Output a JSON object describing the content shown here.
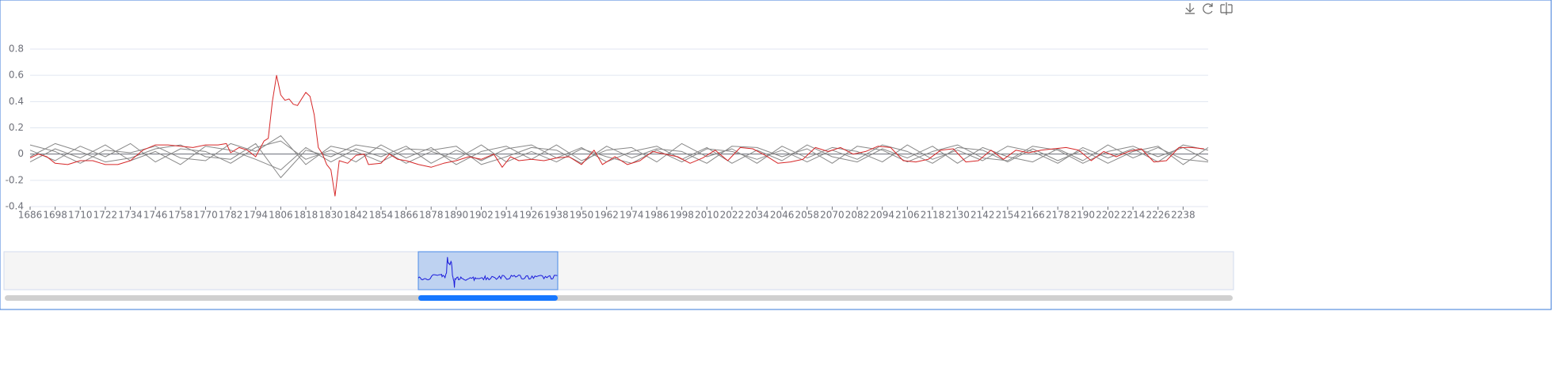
{
  "chart_data": {
    "type": "line",
    "x": [
      1686,
      1698,
      1710,
      1722,
      1734,
      1746,
      1758,
      1770,
      1782,
      1794,
      1806,
      1818,
      1830,
      1842,
      1854,
      1866,
      1878,
      1890,
      1902,
      1914,
      1926,
      1938,
      1950,
      1962,
      1974,
      1986,
      1998,
      2010,
      2022,
      2034,
      2046,
      2058,
      2070,
      2082,
      2094,
      2106,
      2118,
      2130,
      2142,
      2154,
      2166,
      2178,
      2190,
      2202,
      2214,
      2226,
      2238,
      2250
    ],
    "xlim": [
      1686,
      2250
    ],
    "xticks": [
      1686,
      1698,
      1710,
      1722,
      1734,
      1746,
      1758,
      1770,
      1782,
      1794,
      1806,
      1818,
      1830,
      1842,
      1854,
      1866,
      1878,
      1890,
      1902,
      1914,
      1926,
      1938,
      1950,
      1962,
      1974,
      1986,
      1998,
      2010,
      2022,
      2034,
      2046,
      2058,
      2070,
      2082,
      2094,
      2106,
      2118,
      2130,
      2142,
      2154,
      2166,
      2178,
      2190,
      2202,
      2214,
      2226,
      2238
    ],
    "ylim": [
      -0.4,
      0.8
    ],
    "yticks": [
      0.8,
      0.6,
      0.4,
      0.2,
      0,
      -0.2,
      -0.4
    ],
    "grid": true,
    "series": [
      {
        "color": "#888888",
        "values": [
          0.03,
          -0.05,
          0.06,
          -0.02,
          0.08,
          -0.06,
          0.04,
          0.02,
          -0.07,
          0.05,
          0.1,
          -0.04,
          0.03,
          -0.06,
          0.07,
          -0.03,
          0.05,
          -0.08,
          0.02,
          0.06,
          -0.04,
          0.07,
          -0.05,
          0.03,
          0.05,
          -0.06,
          0.08,
          -0.02,
          0.04,
          -0.07,
          0.06,
          -0.03,
          0.05,
          0.02,
          -0.06,
          0.07,
          -0.04,
          0.03,
          -0.05,
          0.06,
          0.02,
          -0.07,
          0.05,
          -0.03,
          0.04,
          -0.06,
          0.07,
          0.03
        ]
      },
      {
        "color": "#888888",
        "values": [
          -0.06,
          0.04,
          -0.03,
          0.07,
          -0.05,
          0.02,
          -0.08,
          0.06,
          0.03,
          -0.04,
          -0.12,
          0.05,
          -0.06,
          0.04,
          -0.02,
          0.06,
          -0.07,
          0.03,
          -0.05,
          0.04,
          0.07,
          -0.03,
          0.05,
          -0.06,
          0.02,
          0.06,
          -0.04,
          0.05,
          -0.07,
          0.03,
          -0.05,
          0.07,
          -0.02,
          -0.06,
          0.04,
          -0.03,
          0.06,
          -0.07,
          0.05,
          -0.02,
          -0.06,
          0.04,
          -0.05,
          0.07,
          -0.03,
          0.05,
          -0.04,
          -0.06
        ]
      },
      {
        "color": "#888888",
        "values": [
          0.07,
          0.02,
          -0.07,
          0.03,
          0.01,
          0.06,
          -0.03,
          -0.05,
          0.08,
          0.02,
          0.14,
          -0.08,
          0.06,
          0.02,
          -0.06,
          0.04,
          0.03,
          0.06,
          -0.08,
          -0.02,
          0.05,
          0.03,
          -0.07,
          0.06,
          -0.03,
          0.04,
          0.02,
          -0.07,
          0.06,
          0.05,
          -0.02,
          0.04,
          -0.07,
          0.06,
          0.03,
          -0.06,
          0.02,
          0.07,
          -0.03,
          -0.05,
          0.06,
          0.03,
          -0.07,
          0.02,
          0.06,
          -0.02,
          0.05,
          -0.05
        ]
      },
      {
        "color": "#888888",
        "values": [
          -0.02,
          0.08,
          0.02,
          -0.06,
          -0.03,
          0.04,
          0.07,
          -0.02,
          -0.04,
          0.08,
          -0.18,
          0.03,
          -0.02,
          0.07,
          0.04,
          -0.07,
          0.02,
          -0.04,
          0.07,
          -0.06,
          0.02,
          -0.06,
          0.04,
          -0.02,
          -0.07,
          0.03,
          -0.06,
          0.04,
          0.02,
          -0.04,
          0.03,
          -0.06,
          0.03,
          -0.04,
          0.07,
          0.02,
          -0.07,
          0.05,
          0.03,
          -0.06,
          0.04,
          -0.05,
          0.03,
          -0.07,
          0.02,
          0.06,
          -0.08,
          0.05
        ]
      },
      {
        "color": "#d62728",
        "overview_color": "#1a1adb",
        "x": [
          1686,
          1690,
          1694,
          1698,
          1704,
          1710,
          1716,
          1720,
          1722,
          1728,
          1734,
          1740,
          1746,
          1752,
          1758,
          1764,
          1770,
          1776,
          1780,
          1782,
          1786,
          1790,
          1794,
          1798,
          1800,
          1802,
          1804,
          1806,
          1808,
          1810,
          1812,
          1814,
          1816,
          1818,
          1820,
          1822,
          1824,
          1826,
          1828,
          1830,
          1832,
          1834,
          1838,
          1842,
          1846,
          1848,
          1854,
          1858,
          1862,
          1866,
          1872,
          1878,
          1884,
          1890,
          1896,
          1902,
          1908,
          1912,
          1916,
          1920,
          1926,
          1932,
          1938,
          1944,
          1950,
          1956,
          1960,
          1966,
          1972,
          1978,
          1984,
          1990,
          1996,
          2002,
          2008,
          2014,
          2020,
          2026,
          2032,
          2038,
          2044,
          2050,
          2056,
          2062,
          2068,
          2074,
          2080,
          2086,
          2092,
          2098,
          2104,
          2110,
          2116,
          2122,
          2128,
          2134,
          2140,
          2146,
          2152,
          2158,
          2164,
          2170,
          2176,
          2182,
          2188,
          2194,
          2200,
          2206,
          2212,
          2218,
          2224,
          2230,
          2236,
          2242,
          2248
        ],
        "values": [
          -0.03,
          0,
          -0.02,
          -0.07,
          -0.08,
          -0.05,
          -0.05,
          -0.07,
          -0.08,
          -0.08,
          -0.05,
          0.03,
          0.07,
          0.07,
          0.06,
          0.05,
          0.07,
          0.07,
          0.08,
          0.01,
          0.05,
          0.03,
          -0.02,
          0.1,
          0.12,
          0.4,
          0.6,
          0.45,
          0.41,
          0.42,
          0.38,
          0.37,
          0.42,
          0.47,
          0.44,
          0.3,
          0.05,
          0,
          -0.08,
          -0.12,
          -0.32,
          -0.05,
          -0.07,
          -0.01,
          0,
          -0.08,
          -0.07,
          0,
          -0.04,
          -0.05,
          -0.08,
          -0.1,
          -0.07,
          -0.05,
          -0.02,
          -0.04,
          0,
          -0.1,
          -0.02,
          -0.05,
          -0.04,
          -0.05,
          -0.03,
          -0.02,
          -0.08,
          0.03,
          -0.08,
          -0.02,
          -0.08,
          -0.05,
          0.02,
          0,
          -0.02,
          -0.07,
          -0.03,
          0.03,
          -0.05,
          0.05,
          0.04,
          -0.01,
          -0.07,
          -0.06,
          -0.04,
          0.05,
          0.02,
          0.05,
          0,
          0.02,
          0.06,
          0.05,
          -0.05,
          -0.06,
          -0.04,
          0.03,
          0.04,
          -0.06,
          -0.05,
          0.03,
          -0.04,
          0.03,
          0.01,
          0.03,
          0.04,
          0.05,
          0.03,
          -0.05,
          0.02,
          -0.02,
          0.02,
          0.04,
          -0.06,
          -0.05,
          0.05,
          0.05,
          0.04
        ]
      }
    ]
  }
}
